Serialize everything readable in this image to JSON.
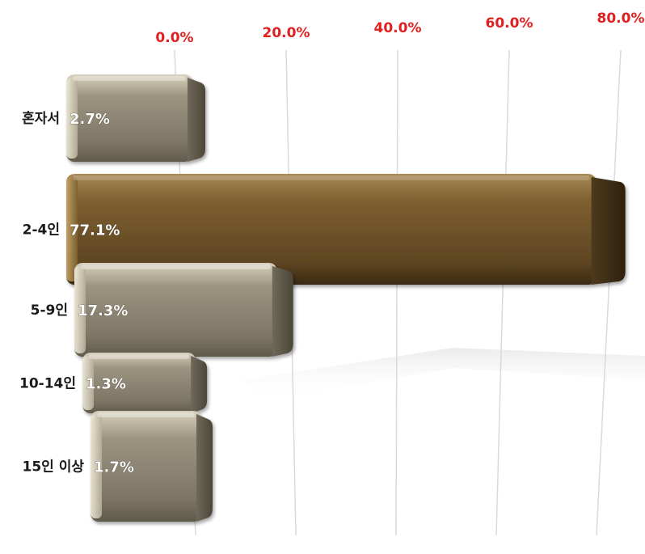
{
  "colors": {
    "axis_label": "#e02020",
    "gridline": "#d9d9d9",
    "bar_default_light": "#b6ae98",
    "bar_default_dark": "#7d7665",
    "bar_highlight_light": "#8a6b3a",
    "bar_highlight_dark": "#4e3a1c",
    "value_label": "#ffffff",
    "category_label": "#1a1a1a"
  },
  "chart_data": {
    "type": "bar",
    "orientation": "horizontal",
    "categories": [
      "혼자서",
      "2-4인",
      "5-9인",
      "10-14인",
      "15인 이상"
    ],
    "values": [
      2.7,
      77.1,
      17.3,
      1.3,
      1.7
    ],
    "value_labels": [
      "2.7%",
      "77.1%",
      "17.3%",
      "1.3%",
      "1.7%"
    ],
    "highlight_index": 1,
    "xlim": [
      0,
      80
    ],
    "x_ticks": [
      0,
      20,
      40,
      60,
      80
    ],
    "x_tick_labels": [
      "0.0%",
      "20.0%",
      "40.0%",
      "60.0%",
      "80.0%"
    ],
    "axis_position": "top",
    "grid": true,
    "legend": "none",
    "title": "",
    "xlabel": "",
    "ylabel": ""
  }
}
